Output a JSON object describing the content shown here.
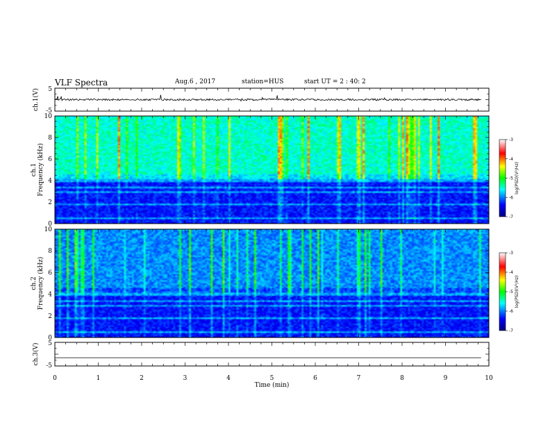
{
  "header": {
    "title": "VLF Spectra",
    "date": "Aug.6 , 2017",
    "station": "station=HUS",
    "start": "start UT = 2 : 40: 2"
  },
  "chart_data": [
    {
      "type": "line",
      "name": "ch1-waveform",
      "ylabel": "ch.1(V)",
      "ylim": [
        -5,
        5
      ],
      "y_ticks": [
        "5",
        "-5"
      ],
      "baseline": 0,
      "noise_amplitude": 0.4,
      "xlim": [
        0,
        10
      ]
    },
    {
      "type": "heatmap",
      "name": "ch1-spectrogram",
      "ylabel": "ch.1\nFrequency (kHz)",
      "ylabel_lines": [
        "ch.1",
        "Frequency (kHz)"
      ],
      "xlim": [
        0,
        10
      ],
      "ylim": [
        0,
        10
      ],
      "y_ticks": [
        0,
        2,
        4,
        6,
        8,
        10
      ],
      "colorbar": {
        "label": "log(PSD)(V²/Hz)",
        "range": [
          -7,
          -3
        ],
        "ticks": [
          -3,
          -4,
          -5,
          -6,
          -7
        ]
      }
    },
    {
      "type": "heatmap",
      "name": "ch2-spectrogram",
      "ylabel": "ch.2\nFrequency (kHz)",
      "ylabel_lines": [
        "ch.2",
        "Frequency (kHz)"
      ],
      "xlim": [
        0,
        10
      ],
      "ylim": [
        0,
        10
      ],
      "y_ticks": [
        0,
        2,
        4,
        6,
        8,
        10
      ],
      "colorbar": {
        "label": "log(PSD)(V²/Hz)",
        "range": [
          -7,
          -3
        ],
        "ticks": [
          -3,
          -4,
          -5,
          -6,
          -7
        ]
      }
    },
    {
      "type": "line",
      "name": "ch3-waveform",
      "ylabel": "ch.3(V)",
      "ylim": [
        -5,
        5
      ],
      "y_ticks": [
        "5",
        "-5"
      ],
      "baseline": -1.5,
      "noise_amplitude": 0,
      "xlim": [
        0,
        10
      ]
    }
  ],
  "x_axis": {
    "label": "Time (min)",
    "ticks": [
      0,
      1,
      2,
      3,
      4,
      5,
      6,
      7,
      8,
      9,
      10
    ]
  },
  "colors": {
    "low": "#000080",
    "mid": "#00ffff",
    "high": "#ff0000"
  }
}
